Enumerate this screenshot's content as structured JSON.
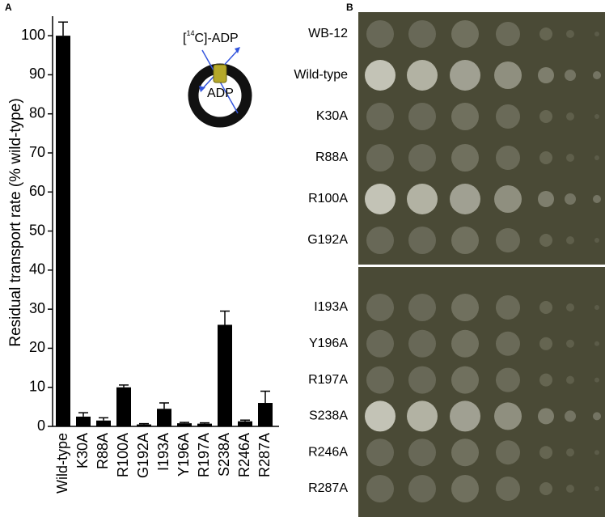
{
  "chart_data": {
    "type": "bar",
    "panel_label": "A",
    "ylabel": "Residual transport rate (% wild-type)",
    "categories": [
      "Wild-type",
      "K30A",
      "R88A",
      "R100A",
      "G192A",
      "I193A",
      "Y196A",
      "R197A",
      "S238A",
      "R246A",
      "R287A"
    ],
    "values": [
      100,
      2.5,
      1.5,
      10,
      0.5,
      4.5,
      0.8,
      0.7,
      26,
      1.3,
      6
    ],
    "errors": [
      3.5,
      1,
      0.7,
      0.6,
      0.2,
      1.5,
      0.2,
      0.2,
      3.5,
      0.3,
      3
    ],
    "color": "#000000",
    "ylim": [
      0,
      105
    ],
    "yticks": [
      0,
      10,
      20,
      30,
      40,
      50,
      60,
      70,
      80,
      90,
      100
    ],
    "inset": {
      "outer_label_open": "[",
      "outer_label_sup": "14",
      "outer_label_rest": "C]-ADP",
      "inner_label": "ADP"
    }
  },
  "panel_b": {
    "panel_label": "B",
    "groups": [
      {
        "labels": [
          "WB-12",
          "Wild-type",
          "K30A",
          "R88A",
          "R100A",
          "G192A"
        ]
      },
      {
        "labels": [
          "I193A",
          "Y196A",
          "R197A",
          "S238A",
          "R246A",
          "R287A"
        ]
      }
    ]
  }
}
